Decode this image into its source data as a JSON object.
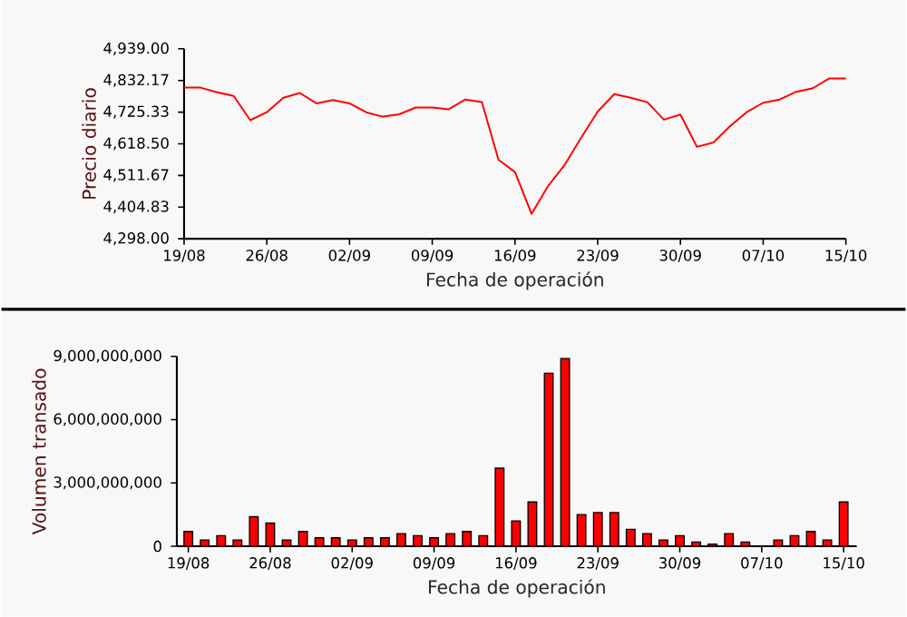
{
  "chart_data": [
    {
      "type": "line",
      "xlabel": "Fecha de operación",
      "ylabel": "Precio diario",
      "color": "#ff0000",
      "categories": [
        "19/08",
        null,
        null,
        null,
        null,
        "26/08",
        null,
        null,
        null,
        null,
        "02/09",
        null,
        null,
        null,
        null,
        "09/09",
        null,
        null,
        null,
        null,
        "16/09",
        null,
        null,
        null,
        null,
        "23/09",
        null,
        null,
        null,
        null,
        "30/09",
        null,
        null,
        null,
        null,
        "07/10",
        null,
        null,
        null,
        null,
        "15/10"
      ],
      "values": [
        4808,
        4808,
        4792,
        4780,
        4698,
        4725,
        4774,
        4790,
        4755,
        4766,
        4755,
        4725,
        4710,
        4718,
        4741,
        4741,
        4735,
        4768,
        4759,
        4565,
        4523,
        4382,
        4476,
        4547,
        4639,
        4727,
        4786,
        4774,
        4759,
        4700,
        4717,
        4608,
        4623,
        4678,
        4725,
        4757,
        4768,
        4794,
        4806,
        4839,
        4839
      ],
      "ylim": [
        4298,
        4939
      ],
      "yticks": [
        {
          "value": 4298,
          "label": "4,298.00"
        },
        {
          "value": 4404.83,
          "label": "4,404.83"
        },
        {
          "value": 4511.67,
          "label": "4,511.67"
        },
        {
          "value": 4618.5,
          "label": "4,618.50"
        },
        {
          "value": 4725.33,
          "label": "4,725.33"
        },
        {
          "value": 4832.17,
          "label": "4,832.17"
        },
        {
          "value": 4939,
          "label": "4,939.00"
        }
      ]
    },
    {
      "type": "bar",
      "xlabel": "Fecha de operación",
      "ylabel": "Volumen transado",
      "color": "#ff0000",
      "categories": [
        "19/08",
        null,
        null,
        null,
        null,
        "26/08",
        null,
        null,
        null,
        null,
        "02/09",
        null,
        null,
        null,
        null,
        "09/09",
        null,
        null,
        null,
        null,
        "16/09",
        null,
        null,
        null,
        null,
        "23/09",
        null,
        null,
        null,
        null,
        "30/09",
        null,
        null,
        null,
        null,
        "07/10",
        null,
        null,
        null,
        null,
        "15/10"
      ],
      "values": [
        700000000,
        300000000,
        500000000,
        300000000,
        1400000000,
        1100000000,
        300000000,
        700000000,
        400000000,
        400000000,
        300000000,
        400000000,
        400000000,
        600000000,
        500000000,
        400000000,
        600000000,
        700000000,
        500000000,
        3700000000,
        1200000000,
        2100000000,
        8200000000,
        8900000000,
        1500000000,
        1600000000,
        1600000000,
        800000000,
        600000000,
        300000000,
        500000000,
        200000000,
        100000000,
        600000000,
        200000000,
        null,
        300000000,
        500000000,
        700000000,
        300000000,
        2100000000
      ],
      "ylim": [
        0,
        9000000000
      ],
      "yticks": [
        {
          "value": 0,
          "label": "0"
        },
        {
          "value": 3000000000,
          "label": "3,000,000,000"
        },
        {
          "value": 6000000000,
          "label": "6,000,000,000"
        },
        {
          "value": 9000000000,
          "label": "9,000,000,000"
        }
      ]
    }
  ]
}
